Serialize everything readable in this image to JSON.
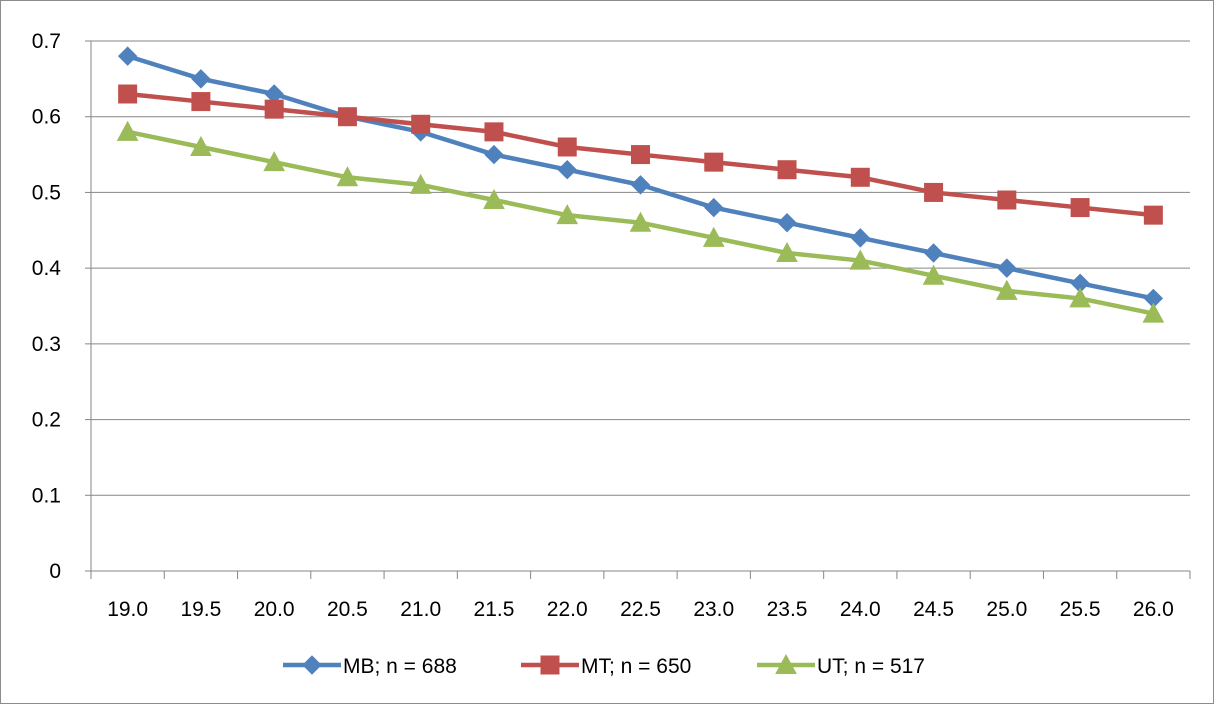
{
  "chart_data": {
    "type": "line",
    "title": "",
    "xlabel": "",
    "ylabel": "",
    "categories": [
      "19.0",
      "19.5",
      "20.0",
      "20.5",
      "21.0",
      "21.5",
      "22.0",
      "22.5",
      "23.0",
      "23.5",
      "24.0",
      "24.5",
      "25.0",
      "25.5",
      "26.0"
    ],
    "ylim": [
      0,
      0.7
    ],
    "yticks": [
      0,
      0.1,
      0.2,
      0.3,
      0.4,
      0.5,
      0.6,
      0.7
    ],
    "ytick_labels": [
      "0",
      "0.1",
      "0.2",
      "0.3",
      "0.4",
      "0.5",
      "0.6",
      "0.7"
    ],
    "grid": "horizontal",
    "legend_position": "bottom",
    "series": [
      {
        "name": "MB; n = 688",
        "color": "#4f81bd",
        "marker": "diamond",
        "values": [
          0.68,
          0.65,
          0.63,
          0.6,
          0.58,
          0.55,
          0.53,
          0.51,
          0.48,
          0.46,
          0.44,
          0.42,
          0.4,
          0.38,
          0.36
        ]
      },
      {
        "name": "MT; n = 650",
        "color": "#c0504d",
        "marker": "square",
        "values": [
          0.63,
          0.62,
          0.61,
          0.6,
          0.59,
          0.58,
          0.56,
          0.55,
          0.54,
          0.53,
          0.52,
          0.5,
          0.49,
          0.48,
          0.47
        ]
      },
      {
        "name": "UT; n = 517",
        "color": "#9bbb59",
        "marker": "triangle",
        "values": [
          0.58,
          0.56,
          0.54,
          0.52,
          0.51,
          0.49,
          0.47,
          0.46,
          0.44,
          0.42,
          0.41,
          0.39,
          0.37,
          0.36,
          0.34
        ]
      }
    ]
  }
}
